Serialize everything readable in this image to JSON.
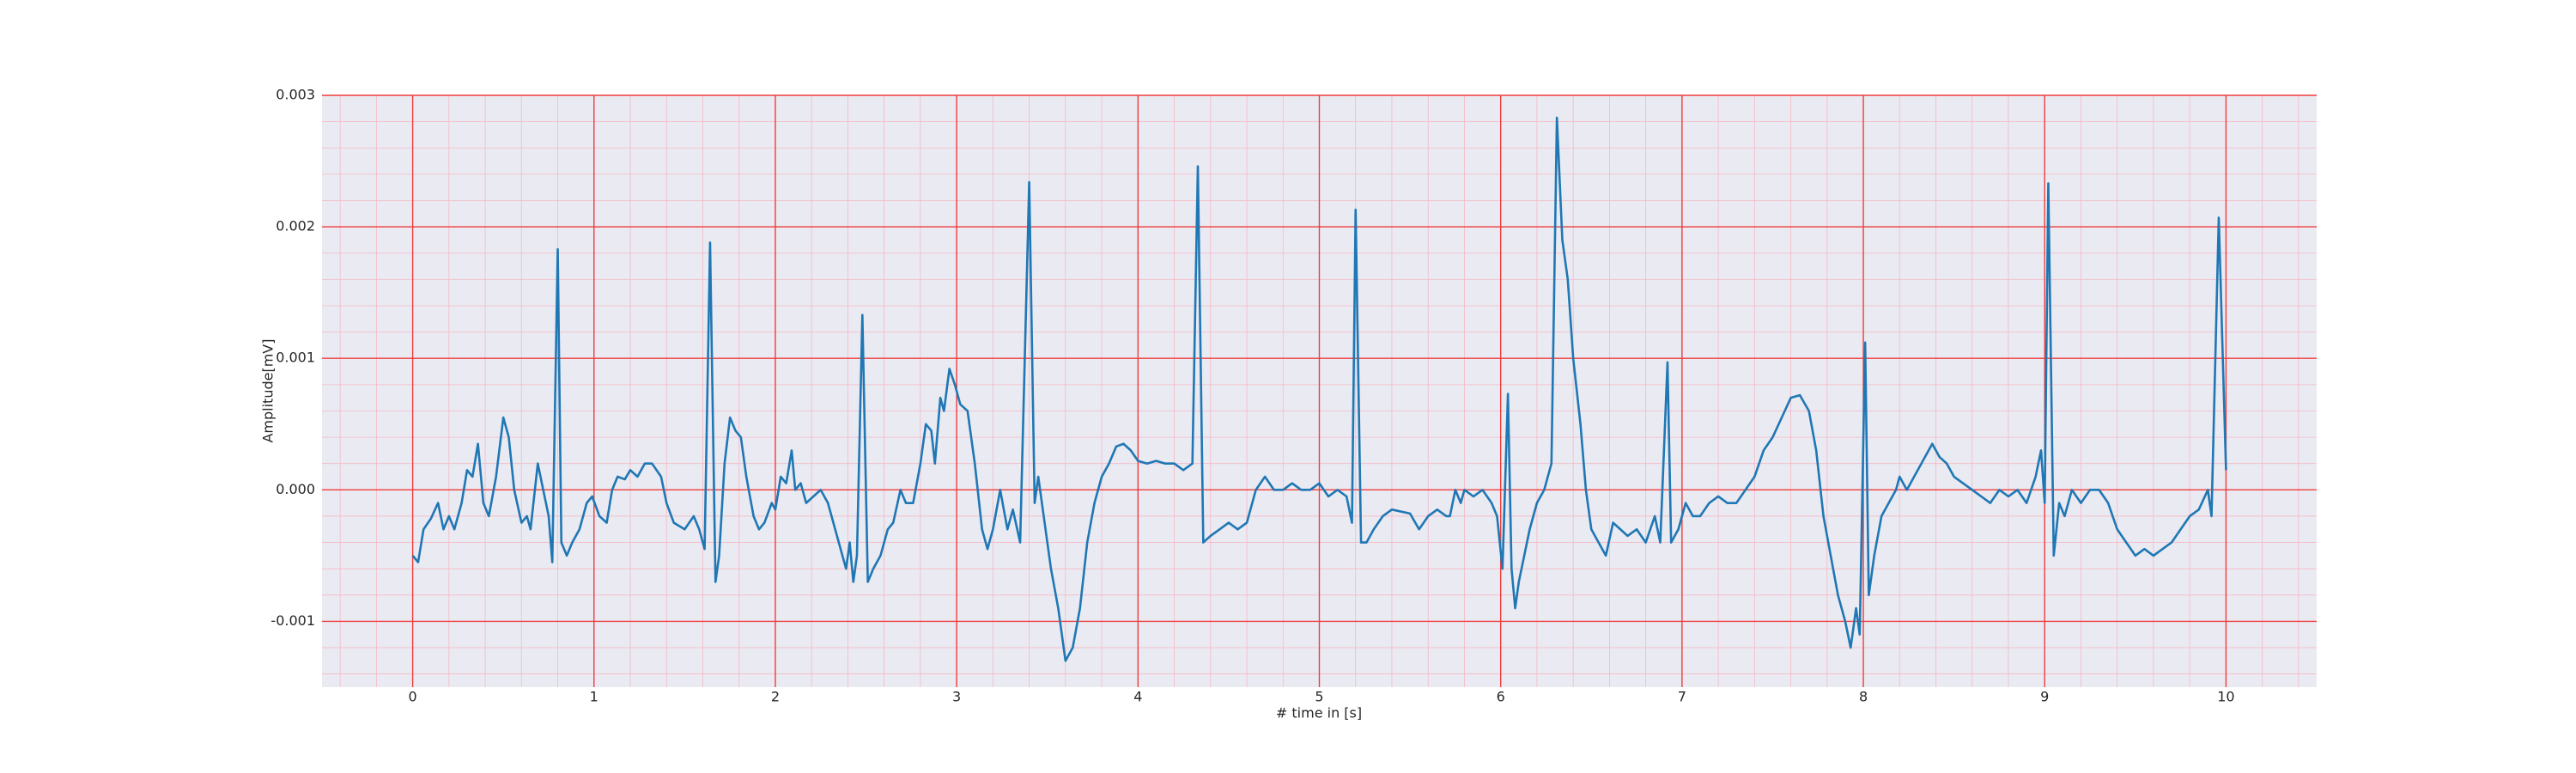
{
  "chart_data": {
    "type": "line",
    "x_label": "# time in [s]",
    "y_label": "Amplitude[mV]",
    "color": "#1f77b4",
    "grid": true,
    "minor_grid": true,
    "xlim": [
      -0.5,
      10.5
    ],
    "xticks": [
      0,
      1,
      2,
      3,
      4,
      5,
      6,
      7,
      8,
      9,
      10
    ],
    "ylim": [
      -0.0015,
      0.003
    ],
    "yticks": [
      -0.001,
      {
        "value": 0,
        "label": "0.000"
      },
      0.001,
      0.002,
      0.003
    ],
    "x": [
      0,
      0.03,
      0.06,
      0.1,
      0.14,
      0.17,
      0.2,
      0.23,
      0.27,
      0.3,
      0.33,
      0.36,
      0.39,
      0.42,
      0.46,
      0.5,
      0.53,
      0.56,
      0.6,
      0.63,
      0.65,
      0.69,
      0.72,
      0.75,
      0.77,
      0.8,
      0.82,
      0.85,
      0.88,
      0.92,
      0.96,
      0.99,
      1.03,
      1.07,
      1.1,
      1.13,
      1.17,
      1.2,
      1.24,
      1.28,
      1.32,
      1.37,
      1.4,
      1.44,
      1.5,
      1.55,
      1.58,
      1.61,
      1.64,
      1.67,
      1.69,
      1.72,
      1.75,
      1.78,
      1.81,
      1.84,
      1.88,
      1.91,
      1.94,
      1.98,
      2.0,
      2.03,
      2.06,
      2.09,
      2.11,
      2.14,
      2.17,
      2.21,
      2.25,
      2.29,
      2.33,
      2.37,
      2.39,
      2.41,
      2.43,
      2.45,
      2.48,
      2.51,
      2.54,
      2.58,
      2.62,
      2.65,
      2.69,
      2.72,
      2.76,
      2.8,
      2.83,
      2.86,
      2.88,
      2.91,
      2.93,
      2.96,
      2.99,
      3.02,
      3.06,
      3.1,
      3.14,
      3.17,
      3.2,
      3.24,
      3.28,
      3.31,
      3.35,
      3.4,
      3.43,
      3.45,
      3.48,
      3.52,
      3.56,
      3.6,
      3.64,
      3.68,
      3.72,
      3.76,
      3.8,
      3.84,
      3.88,
      3.92,
      3.96,
      4.0,
      4.05,
      4.1,
      4.15,
      4.2,
      4.25,
      4.3,
      4.33,
      4.36,
      4.4,
      4.45,
      4.5,
      4.55,
      4.6,
      4.65,
      4.7,
      4.75,
      4.8,
      4.85,
      4.9,
      4.95,
      5.0,
      5.05,
      5.1,
      5.15,
      5.18,
      5.2,
      5.23,
      5.26,
      5.3,
      5.35,
      5.4,
      5.5,
      5.55,
      5.6,
      5.65,
      5.7,
      5.72,
      5.75,
      5.78,
      5.8,
      5.85,
      5.9,
      5.95,
      5.98,
      6.01,
      6.04,
      6.06,
      6.08,
      6.1,
      6.13,
      6.16,
      6.2,
      6.24,
      6.28,
      6.31,
      6.34,
      6.37,
      6.4,
      6.44,
      6.47,
      6.5,
      6.54,
      6.58,
      6.62,
      6.66,
      6.7,
      6.75,
      6.8,
      6.85,
      6.88,
      6.92,
      6.94,
      6.98,
      7.02,
      7.06,
      7.1,
      7.15,
      7.2,
      7.25,
      7.3,
      7.35,
      7.4,
      7.45,
      7.5,
      7.55,
      7.6,
      7.65,
      7.7,
      7.74,
      7.78,
      7.82,
      7.86,
      7.9,
      7.93,
      7.96,
      7.98,
      8.01,
      8.03,
      8.06,
      8.1,
      8.14,
      8.18,
      8.2,
      8.24,
      8.28,
      8.32,
      8.36,
      8.38,
      8.42,
      8.46,
      8.5,
      8.55,
      8.6,
      8.65,
      8.7,
      8.75,
      8.8,
      8.85,
      8.9,
      8.95,
      8.98,
      9.0,
      9.02,
      9.05,
      9.08,
      9.11,
      9.15,
      9.2,
      9.25,
      9.3,
      9.35,
      9.4,
      9.45,
      9.5,
      9.55,
      9.6,
      9.65,
      9.7,
      9.75,
      9.8,
      9.85,
      9.9,
      9.92,
      9.96,
      10.0
    ],
    "values": [
      -0.0005,
      -0.00055,
      -0.0003,
      -0.00022,
      -0.0001,
      -0.0003,
      -0.0002,
      -0.0003,
      -0.0001,
      0.00015,
      0.0001,
      0.00035,
      -0.0001,
      -0.0002,
      0.0001,
      0.00055,
      0.0004,
      0.0,
      -0.00025,
      -0.0002,
      -0.0003,
      0.0002,
      0.0,
      -0.0002,
      -0.00055,
      0.00183,
      -0.0004,
      -0.0005,
      -0.0004,
      -0.0003,
      -0.0001,
      -5e-05,
      -0.0002,
      -0.00025,
      0.0,
      0.0001,
      8e-05,
      0.00015,
      0.0001,
      0.0002,
      0.0002,
      0.0001,
      -0.0001,
      -0.00025,
      -0.0003,
      -0.0002,
      -0.0003,
      -0.00045,
      0.00188,
      -0.0007,
      -0.0005,
      0.0002,
      0.00055,
      0.00045,
      0.0004,
      0.0001,
      -0.0002,
      -0.0003,
      -0.00025,
      -0.0001,
      -0.00015,
      0.0001,
      5e-05,
      0.0003,
      0.0,
      5e-05,
      -0.0001,
      -5e-05,
      0.0,
      -0.0001,
      -0.0003,
      -0.0005,
      -0.0006,
      -0.0004,
      -0.0007,
      -0.0005,
      0.00133,
      -0.0007,
      -0.0006,
      -0.0005,
      -0.0003,
      -0.00025,
      0.0,
      -0.0001,
      -0.0001,
      0.0002,
      0.0005,
      0.00045,
      0.0002,
      0.0007,
      0.0006,
      0.00092,
      0.0008,
      0.00065,
      0.0006,
      0.0002,
      -0.0003,
      -0.00045,
      -0.0003,
      0.0,
      -0.0003,
      -0.00015,
      -0.0004,
      0.00234,
      -0.0001,
      0.0001,
      -0.0002,
      -0.0006,
      -0.0009,
      -0.0013,
      -0.0012,
      -0.0009,
      -0.0004,
      -0.0001,
      0.0001,
      0.0002,
      0.00033,
      0.00035,
      0.0003,
      0.00022,
      0.0002,
      0.00022,
      0.0002,
      0.0002,
      0.00015,
      0.0002,
      0.00246,
      -0.0004,
      -0.00035,
      -0.0003,
      -0.00025,
      -0.0003,
      -0.00025,
      0.0,
      0.0001,
      0.0,
      0.0,
      5e-05,
      0.0,
      0.0,
      5e-05,
      -5e-05,
      0.0,
      -5e-05,
      -0.00025,
      0.00213,
      -0.0004,
      -0.0004,
      -0.0003,
      -0.0002,
      -0.00015,
      -0.00018,
      -0.0003,
      -0.0002,
      -0.00015,
      -0.0002,
      -0.0002,
      0.0,
      -0.0001,
      0.0,
      -5e-05,
      0.0,
      -0.0001,
      -0.0002,
      -0.0006,
      0.00073,
      -0.0006,
      -0.0009,
      -0.0007,
      -0.0005,
      -0.0003,
      -0.0001,
      0.0,
      0.0002,
      0.00283,
      0.0019,
      0.0016,
      0.001,
      0.0005,
      0.0,
      -0.0003,
      -0.0004,
      -0.0005,
      -0.00025,
      -0.0003,
      -0.00035,
      -0.0003,
      -0.0004,
      -0.0002,
      -0.0004,
      0.00097,
      -0.0004,
      -0.0003,
      -0.0001,
      -0.0002,
      -0.0002,
      -0.0001,
      -5e-05,
      -0.0001,
      -0.0001,
      0.0,
      0.0001,
      0.0003,
      0.0004,
      0.00055,
      0.0007,
      0.00072,
      0.0006,
      0.0003,
      -0.0002,
      -0.0005,
      -0.0008,
      -0.001,
      -0.0012,
      -0.0009,
      -0.0011,
      0.00112,
      -0.0008,
      -0.0005,
      -0.0002,
      -0.0001,
      0.0,
      0.0001,
      0.0,
      0.0001,
      0.0002,
      0.0003,
      0.00035,
      0.00025,
      0.0002,
      0.0001,
      5e-05,
      0.0,
      -5e-05,
      -0.0001,
      0.0,
      -5e-05,
      0.0,
      -0.0001,
      0.0001,
      0.0003,
      -0.0001,
      0.00233,
      -0.0005,
      -0.0001,
      -0.0002,
      0.0,
      -0.0001,
      0.0,
      0.0,
      -0.0001,
      -0.0003,
      -0.0004,
      -0.0005,
      -0.00045,
      -0.0005,
      -0.00045,
      -0.0004,
      -0.0003,
      -0.0002,
      -0.00015,
      0.0,
      -0.0002,
      0.00207,
      0.00015
    ]
  }
}
